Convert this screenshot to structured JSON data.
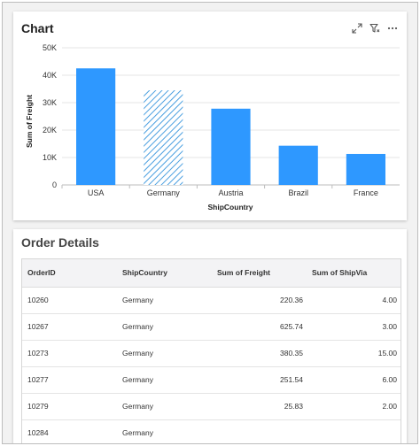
{
  "chart_card": {
    "title": "Chart",
    "tools": [
      {
        "name": "expand-icon"
      },
      {
        "name": "filter-icon"
      },
      {
        "name": "more-options-icon"
      }
    ]
  },
  "chart_data": {
    "type": "bar",
    "title": "",
    "xlabel": "ShipCountry",
    "ylabel": "Sum of Freight",
    "categories": [
      "USA",
      "Germany",
      "Austria",
      "Brazil",
      "France"
    ],
    "values": [
      42500,
      34500,
      27800,
      14300,
      11300
    ],
    "ylim": [
      0,
      50000
    ],
    "yticks": [
      "0",
      "10K",
      "20K",
      "30K",
      "40K",
      "50K"
    ],
    "highlighted_category": "Germany",
    "highlight_style": "diagonal-hatch",
    "bar_color": "#2e98ff",
    "grid": true,
    "legend": "none"
  },
  "table_card": {
    "title": "Order Details",
    "columns": [
      "OrderID",
      "ShipCountry",
      "Sum of Freight",
      "Sum of ShipVia"
    ],
    "rows": [
      [
        "10260",
        "Germany",
        "220.36",
        "4.00"
      ],
      [
        "10267",
        "Germany",
        "625.74",
        "3.00"
      ],
      [
        "10273",
        "Germany",
        "380.35",
        "15.00"
      ],
      [
        "10277",
        "Germany",
        "251.54",
        "6.00"
      ],
      [
        "10279",
        "Germany",
        "25.83",
        "2.00"
      ],
      [
        "10284",
        "Germany",
        "",
        ""
      ]
    ]
  }
}
